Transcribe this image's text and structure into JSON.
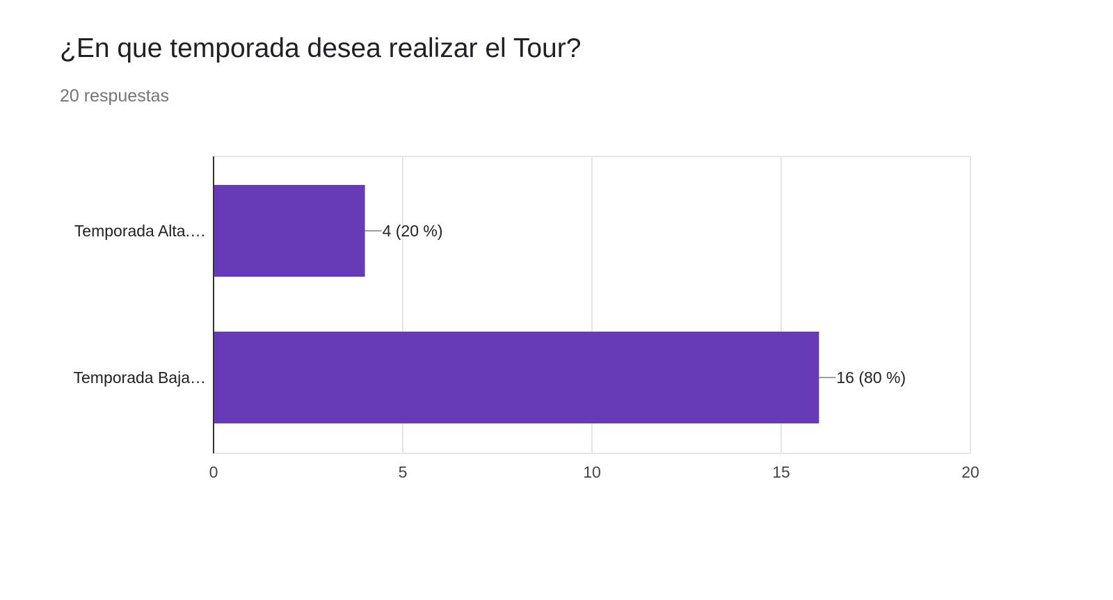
{
  "question": {
    "title": "¿En que temporada desea realizar el Tour?",
    "responses": "20 respuestas"
  },
  "chart_data": {
    "type": "bar",
    "orientation": "horizontal",
    "categories": [
      "Temporada Alta.…",
      "Temporada Baja…"
    ],
    "values": [
      4,
      16
    ],
    "data_labels": [
      "4 (20 %)",
      "16 (80 %)"
    ],
    "xlim": [
      0,
      20
    ],
    "xticks": [
      0,
      5,
      10,
      15,
      20
    ],
    "grid": true,
    "bar_color": "#673ab7"
  }
}
